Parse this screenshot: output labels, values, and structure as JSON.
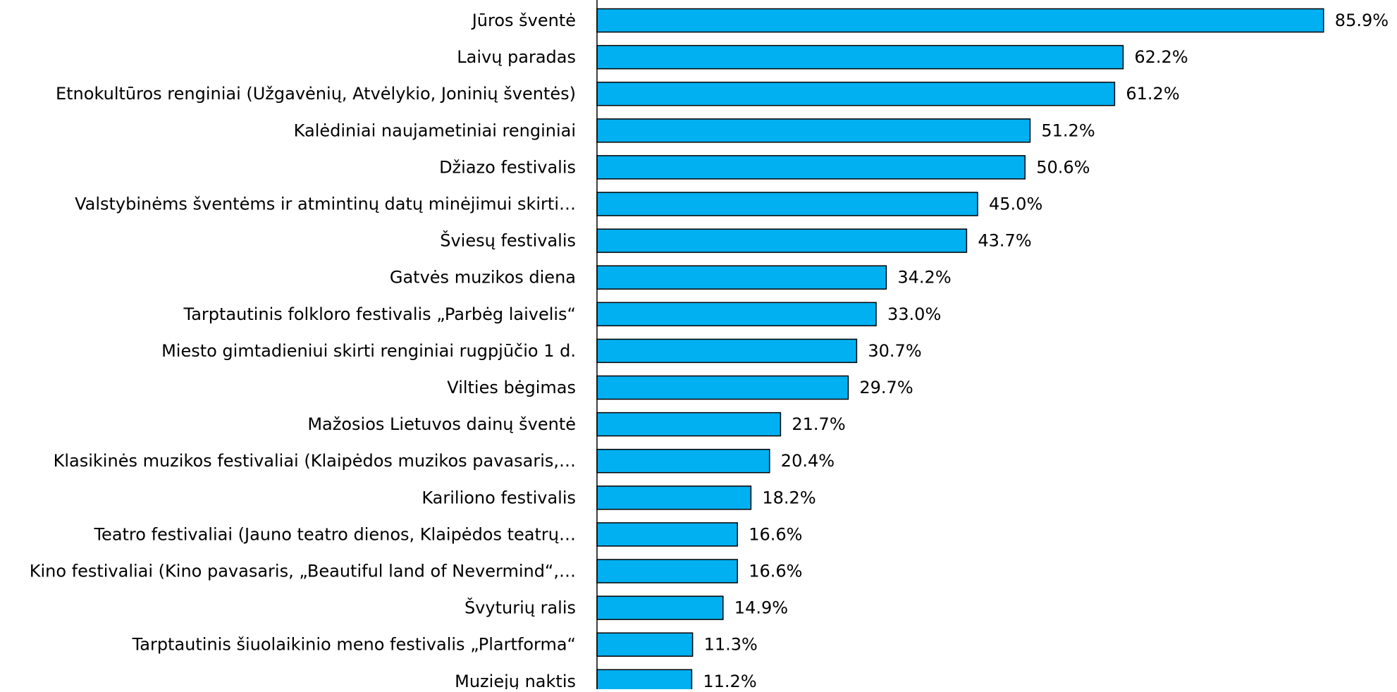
{
  "chart_data": {
    "type": "barh",
    "categories": [
      "Jūros šventė",
      "Laivų paradas",
      "Etnokultūros renginiai (Užgavėnių, Atvėlykio, Joninių šventės)",
      "Kalėdiniai naujametiniai renginiai",
      "Džiazo festivalis",
      "Valstybinėms šventėms ir atmintinų datų minėjimui skirti…",
      "Šviesų festivalis",
      "Gatvės muzikos diena",
      "Tarptautinis folkloro festivalis „Parbėg laivelis“",
      "Miesto gimtadieniui skirti renginiai rugpjūčio 1 d.",
      "Vilties bėgimas",
      "Mažosios Lietuvos dainų šventė",
      "Klasikinės muzikos festivaliai (Klaipėdos muzikos pavasaris,…",
      "Kariliono festivalis",
      "Teatro festivaliai (Jauno teatro dienos, Klaipėdos teatrų…",
      "Kino festivaliai (Kino pavasaris, „Beautiful land of Nevermind“,…",
      "Švyturių ralis",
      "Tarptautinis šiuolaikinio meno festivalis „Plartforma“",
      "Muziejų naktis"
    ],
    "values": [
      85.9,
      62.2,
      61.2,
      51.2,
      50.6,
      45.0,
      43.7,
      34.2,
      33.0,
      30.7,
      29.7,
      21.7,
      20.4,
      18.2,
      16.6,
      16.6,
      14.9,
      11.3,
      11.2
    ],
    "value_labels": [
      "85.9%",
      "62.2%",
      "61.2%",
      "51.2%",
      "50.6%",
      "45.0%",
      "43.7%",
      "34.2%",
      "33.0%",
      "30.7%",
      "29.7%",
      "21.7%",
      "20.4%",
      "18.2%",
      "16.6%",
      "16.6%",
      "14.9%",
      "11.3%",
      "11.2%"
    ],
    "color": "#00B0F0",
    "xlim": [
      0,
      90
    ]
  }
}
